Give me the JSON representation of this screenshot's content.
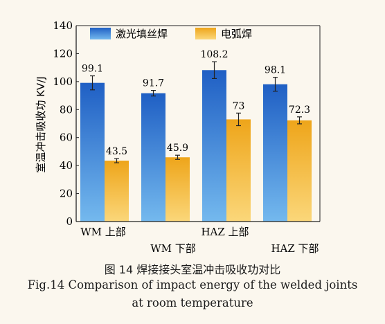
{
  "chart_data": {
    "type": "bar",
    "categories": [
      "WM 上部",
      "WM 下部",
      "HAZ 上部",
      "HAZ 下部"
    ],
    "series": [
      {
        "name": "激光填丝焊",
        "values": [
          99.1,
          91.7,
          108.2,
          98.1
        ],
        "errors": [
          5,
          2,
          6,
          5
        ],
        "color": "#2f73d0"
      },
      {
        "name": "电弧焊",
        "values": [
          43.5,
          45.9,
          73,
          72.3
        ],
        "errors": [
          1.5,
          1.5,
          4.5,
          2.5
        ],
        "color": "#f2b128"
      }
    ],
    "value_labels": [
      [
        "99.1",
        "91.7",
        "108.2",
        "98.1"
      ],
      [
        "43.5",
        "45.9",
        "73",
        "72.3"
      ]
    ],
    "ylabel": "室温冲击吸收功 KV/J",
    "ylim": [
      0,
      140
    ],
    "yticks": [
      "0",
      "20",
      "40",
      "60",
      "80",
      "100",
      "120",
      "140"
    ],
    "grid": false,
    "legend_position": "top-center"
  },
  "caption": {
    "cn": "图 14  焊接接头室温冲击吸收功对比",
    "en_line1": "Fig.14  Comparison of impact energy of the welded joints",
    "en_line2": "at room temperature"
  }
}
